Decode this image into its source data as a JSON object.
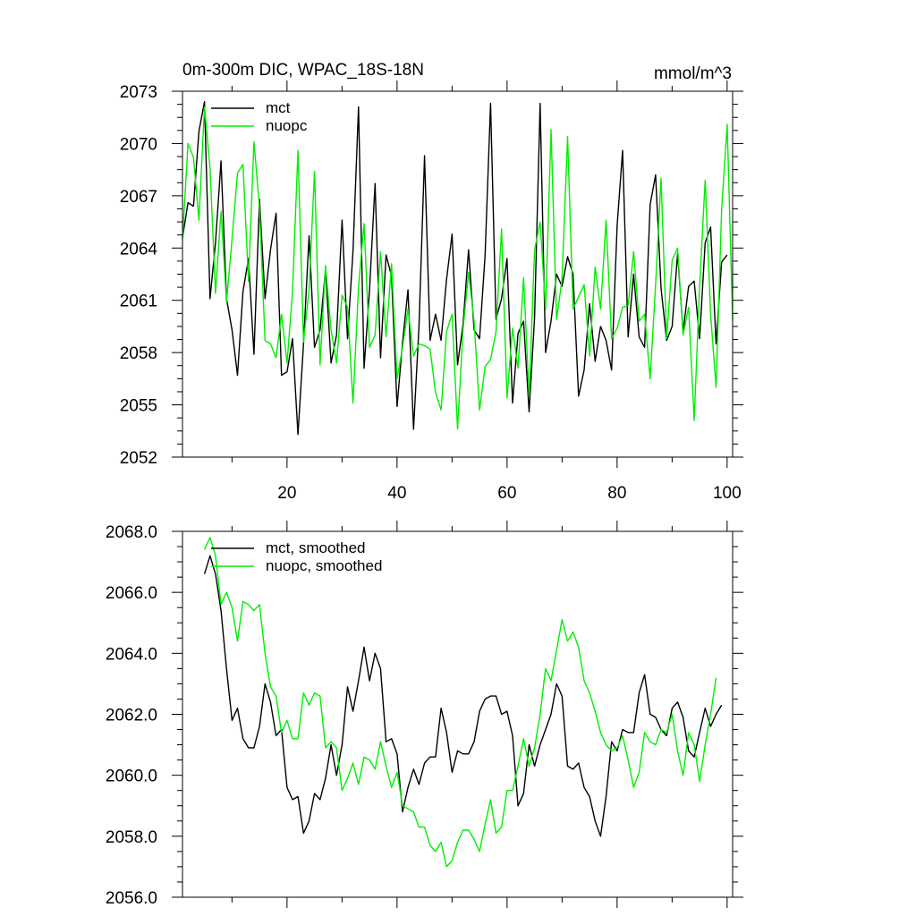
{
  "chart_data": [
    {
      "type": "line",
      "title": "0m-300m DIC, WPAC_18S-18N",
      "units": "mmol/m^3",
      "xlim": [
        1,
        101
      ],
      "ylim": [
        2052,
        2073
      ],
      "x_ticks": [
        20,
        40,
        60,
        80,
        100
      ],
      "y_ticks": [
        2052,
        2055,
        2058,
        2061,
        2064,
        2067,
        2070,
        2073
      ],
      "y_tick_labels": [
        "2052",
        "2055",
        "2058",
        "2061",
        "2064",
        "2067",
        "2070",
        "2073"
      ],
      "legend_position": "top-left",
      "x_start": 1,
      "series": [
        {
          "name": "mct",
          "color": "#000000",
          "values": [
            2064.6,
            2066.6,
            2066.4,
            2070.7,
            2072.4,
            2061.1,
            2064.3,
            2069.0,
            2061.1,
            2059.3,
            2056.7,
            2061.5,
            2063.4,
            2057.9,
            2066.8,
            2061.1,
            2063.9,
            2066.0,
            2056.7,
            2056.9,
            2058.8,
            2053.3,
            2058.5,
            2064.7,
            2058.3,
            2059.3,
            2062.8,
            2057.4,
            2059.0,
            2065.6,
            2058.8,
            2063.8,
            2072.1,
            2057.1,
            2061.6,
            2067.7,
            2057.7,
            2063.6,
            2062.4,
            2054.9,
            2058.6,
            2061.6,
            2053.6,
            2059.5,
            2069.3,
            2058.7,
            2060.2,
            2058.7,
            2062.2,
            2064.8,
            2057.3,
            2059.6,
            2063.9,
            2059.3,
            2058.8,
            2063.6,
            2072.3,
            2059.9,
            2061.1,
            2063.4,
            2055.1,
            2059.1,
            2059.8,
            2054.6,
            2060.0,
            2072.3,
            2058.0,
            2059.8,
            2062.5,
            2061.8,
            2063.5,
            2062.5,
            2055.5,
            2057.0,
            2060.8,
            2057.5,
            2059.5,
            2058.7,
            2057.0,
            2065.3,
            2069.6,
            2058.9,
            2062.5,
            2058.9,
            2058.3,
            2066.5,
            2068.2,
            2061.7,
            2058.7,
            2059.5,
            2063.7,
            2059.2,
            2061.8,
            2062.1,
            2058.8,
            2064.3,
            2065.2,
            2058.5,
            2063.2,
            2063.6
          ]
        },
        {
          "name": "nuopc",
          "color": "#00ee00",
          "values": [
            2064.5,
            2070.0,
            2069.2,
            2065.6,
            2072.1,
            2068.6,
            2061.4,
            2066.1,
            2060.9,
            2064.5,
            2068.3,
            2068.8,
            2062.1,
            2070.1,
            2066.3,
            2058.7,
            2058.5,
            2057.7,
            2060.2,
            2057.4,
            2061.5,
            2069.6,
            2058.6,
            2061.6,
            2068.4,
            2057.3,
            2063.0,
            2059.3,
            2057.4,
            2061.3,
            2060.6,
            2055.1,
            2061.8,
            2065.4,
            2058.3,
            2059.0,
            2063.8,
            2058.9,
            2063.1,
            2056.5,
            2058.3,
            2060.5,
            2057.8,
            2058.5,
            2058.4,
            2058.2,
            2055.7,
            2054.7,
            2059.2,
            2060.2,
            2053.6,
            2059.3,
            2062.6,
            2059.8,
            2054.7,
            2057.2,
            2057.6,
            2059.2,
            2065.1,
            2055.4,
            2059.4,
            2057.1,
            2062.3,
            2055.5,
            2063.9,
            2065.5,
            2060.5,
            2070.8,
            2059.9,
            2062.2,
            2070.4,
            2060.5,
            2061.2,
            2061.9,
            2057.8,
            2062.9,
            2060.5,
            2065.6,
            2058.8,
            2059.4,
            2060.6,
            2060.7,
            2063.8,
            2059.8,
            2060.2,
            2056.5,
            2061.9,
            2068.0,
            2058.8,
            2063.3,
            2064.0,
            2059.0,
            2060.6,
            2054.1,
            2061.8,
            2067.9,
            2060.2,
            2056.0,
            2066.2,
            2071.1,
            2059.9
          ]
        }
      ]
    },
    {
      "type": "line",
      "xlim": [
        1,
        101
      ],
      "ylim": [
        2056.0,
        2068.0
      ],
      "x_ticks": [
        20,
        40,
        60,
        80,
        100
      ],
      "y_ticks": [
        2056,
        2058,
        2060,
        2062,
        2064,
        2066,
        2068
      ],
      "y_tick_labels": [
        "2056.0",
        "2058.0",
        "2060.0",
        "2062.0",
        "2064.0",
        "2066.0",
        "2068.0"
      ],
      "legend_position": "top-left",
      "x_start": 5,
      "series": [
        {
          "name": "mct, smoothed",
          "color": "#000000",
          "values": [
            2066.6,
            2067.2,
            2066.6,
            2065.4,
            2063.5,
            2061.8,
            2062.2,
            2061.2,
            2060.9,
            2060.9,
            2061.6,
            2063.0,
            2062.4,
            2061.3,
            2061.5,
            2059.6,
            2059.2,
            2059.3,
            2058.1,
            2058.5,
            2059.4,
            2059.2,
            2059.9,
            2061.0,
            2060.0,
            2061.0,
            2062.9,
            2062.1,
            2063.1,
            2064.2,
            2063.1,
            2064.0,
            2063.5,
            2061.1,
            2061.2,
            2060.7,
            2058.8,
            2059.6,
            2060.2,
            2059.7,
            2060.4,
            2060.6,
            2060.6,
            2062.2,
            2061.4,
            2060.1,
            2060.8,
            2060.7,
            2060.7,
            2061.1,
            2062.1,
            2062.5,
            2062.6,
            2062.6,
            2062.0,
            2062.1,
            2061.3,
            2059.0,
            2059.4,
            2061.0,
            2060.3,
            2061.0,
            2061.5,
            2062.0,
            2063.0,
            2062.6,
            2060.3,
            2060.2,
            2060.4,
            2059.6,
            2059.3,
            2058.5,
            2058.0,
            2059.3,
            2061.1,
            2060.8,
            2061.5,
            2061.4,
            2061.4,
            2062.7,
            2063.3,
            2062.0,
            2061.9,
            2061.5,
            2061.3,
            2062.2,
            2062.4,
            2061.9,
            2060.8,
            2060.6,
            2061.4,
            2062.2,
            2061.6,
            2062.0,
            2062.3
          ]
        },
        {
          "name": "nuopc, smoothed",
          "color": "#00ee00",
          "values": [
            2067.4,
            2067.8,
            2067.2,
            2065.6,
            2066.0,
            2065.5,
            2064.4,
            2065.7,
            2065.6,
            2065.4,
            2065.6,
            2064.0,
            2062.9,
            2062.6,
            2061.4,
            2061.8,
            2061.2,
            2061.2,
            2062.7,
            2062.3,
            2062.7,
            2062.6,
            2060.9,
            2061.1,
            2060.9,
            2059.5,
            2059.9,
            2060.4,
            2059.7,
            2060.6,
            2060.5,
            2060.2,
            2061.1,
            2060.3,
            2059.6,
            2060.1,
            2059.0,
            2058.9,
            2058.8,
            2058.3,
            2058.3,
            2057.7,
            2057.5,
            2057.8,
            2057.0,
            2057.2,
            2057.8,
            2058.2,
            2058.2,
            2057.9,
            2057.5,
            2058.4,
            2059.2,
            2058.1,
            2058.3,
            2059.5,
            2059.5,
            2060.3,
            2061.2,
            2060.3,
            2060.9,
            2062.0,
            2063.5,
            2063.1,
            2064.1,
            2065.1,
            2064.4,
            2064.7,
            2064.2,
            2063.1,
            2062.7,
            2062.1,
            2061.4,
            2061.0,
            2060.8,
            2060.9,
            2061.3,
            2060.5,
            2059.6,
            2060.1,
            2061.4,
            2061.1,
            2061.0,
            2061.5,
            2061.4,
            2062.0,
            2060.8,
            2060.0,
            2061.4,
            2061.0,
            2059.8,
            2061.0,
            2062.0,
            2063.2
          ]
        }
      ]
    }
  ]
}
